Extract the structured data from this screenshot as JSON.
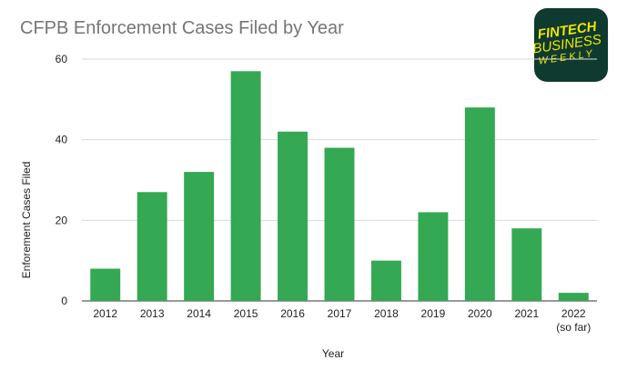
{
  "chart_data": {
    "type": "bar",
    "title": "CFPB Enforcement Cases Filed by Year",
    "xlabel": "Year",
    "ylabel": "Enforement Cases Filed",
    "categories": [
      "2012",
      "2013",
      "2014",
      "2015",
      "2016",
      "2017",
      "2018",
      "2019",
      "2020",
      "2021",
      "2022\n(so far)"
    ],
    "values": [
      8,
      27,
      32,
      57,
      42,
      38,
      10,
      22,
      48,
      18,
      2
    ],
    "ylim": [
      0,
      60
    ],
    "yticks": [
      0,
      20,
      40,
      60
    ],
    "grid": true,
    "bar_color": "#34a853"
  },
  "logo": {
    "line1": "FINTECH",
    "line2": "BUSINESS",
    "line3": "WEEKLY",
    "bg_color": "#0e3a30",
    "text_color": "#f3e600"
  }
}
